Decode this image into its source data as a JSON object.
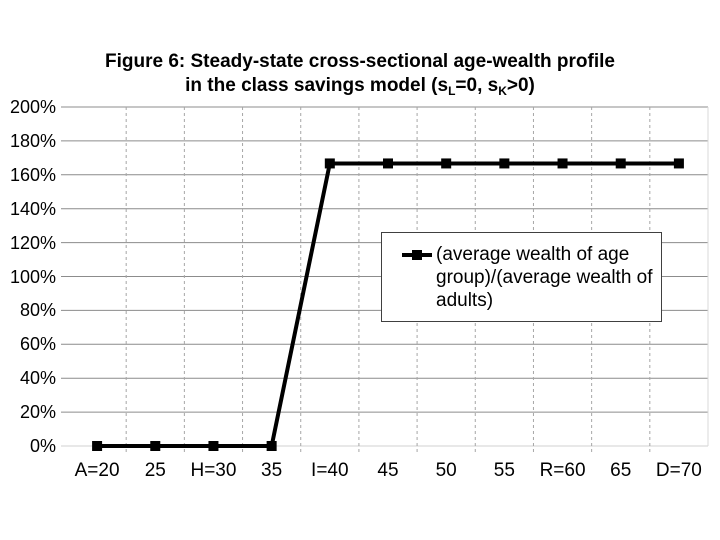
{
  "slide": {
    "background": "#ffffff"
  },
  "title": {
    "line1": "Figure 6: Steady-state cross-sectional age-wealth profile",
    "line2": {
      "pre": "in the class savings model (s",
      "sub1": "L",
      "mid": "=0, s",
      "sub2": "K",
      "post": ">0)"
    }
  },
  "legend": {
    "lines": [
      "(average wealth of age",
      "group)/(average wealth of",
      "adults)"
    ]
  },
  "chart_data": {
    "type": "line",
    "title": "Figure 6: Steady-state cross-sectional age-wealth profile in the class savings model (sL=0, sK>0)",
    "categories": [
      "A=20",
      "25",
      "H=30",
      "35",
      "I=40",
      "45",
      "50",
      "55",
      "R=60",
      "65",
      "D=70"
    ],
    "series": [
      {
        "name": "(average wealth of age group)/(average wealth of adults)",
        "values": [
          0,
          0,
          0,
          0,
          166.7,
          166.7,
          166.7,
          166.7,
          166.7,
          166.7,
          166.7
        ],
        "line_color": "#000000",
        "marker": "square",
        "marker_color": "#000000"
      }
    ],
    "xlabel": "",
    "ylabel": "",
    "ylim": [
      0,
      200
    ],
    "yticks": [
      0,
      20,
      40,
      60,
      80,
      100,
      120,
      140,
      160,
      180,
      200
    ],
    "ytick_labels": [
      "0%",
      "20%",
      "40%",
      "60%",
      "80%",
      "100%",
      "120%",
      "140%",
      "160%",
      "180%",
      "200%"
    ],
    "grid": {
      "horizontal": "solid",
      "vertical": "dashed-at-category-boundaries",
      "h_color": "#8c8c8c",
      "h_zero_color": "#d0d0d0",
      "v_color": "#a6a6a6"
    },
    "legend_position": "middle-right",
    "plot_background": "#ffffff"
  }
}
